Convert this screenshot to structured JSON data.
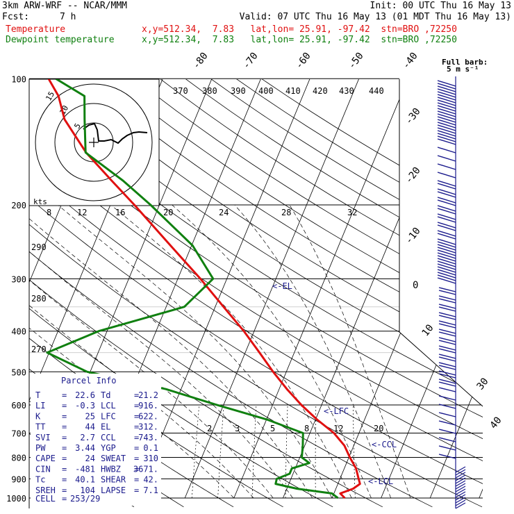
{
  "header": {
    "model": "3km ARW-WRF -- NCAR/MMM",
    "init": "Init: 00 UTC Thu 16 May 13",
    "fcst_label": "Fcst:",
    "fcst_value": "7 h",
    "valid": "Valid: 07 UTC Thu 16 May 13 (01 MDT Thu 16 May 13)",
    "temperature_label": "Temperature",
    "temperature_info": "x,y=512.34,  7.83   lat,lon= 25.91, -97.42  stn=BRO ,72250",
    "dewpoint_label": "Dewpoint temperature",
    "dewpoint_info": "x,y=512.34,  7.83   lat,lon= 25.91, -97.42  stn=BRO ,72250"
  },
  "barb_legend": {
    "line1": "Full barb:",
    "line2": "5 m s⁻¹"
  },
  "hodograph": {
    "units": "kts",
    "ring_labels": [
      "5",
      "10",
      "15"
    ]
  },
  "parcel": {
    "title": "Parcel Info",
    "rows": [
      [
        "T",
        "22.6",
        "Td",
        "21.2"
      ],
      [
        "LI",
        "-0.3",
        "LCL",
        "916."
      ],
      [
        "K",
        "25",
        "LFC",
        "622."
      ],
      [
        "TT",
        "44",
        "EL",
        "312."
      ],
      [
        "SVI",
        "2.7",
        "CCL",
        "743."
      ],
      [
        "PW",
        "3.44",
        "YGP",
        "0.1"
      ],
      [
        "CAPE",
        "24",
        "SWEAT",
        "310"
      ],
      [
        "CIN",
        "-481",
        "HWBZ",
        "3671."
      ],
      [
        "Tc",
        "40.1",
        "SHEAR",
        "42."
      ],
      [
        "SREH",
        "104",
        "LAPSE",
        "7.1"
      ]
    ],
    "cell_label": "CELL",
    "cell_value": "253/29"
  },
  "chart_data": {
    "type": "line",
    "title": "",
    "xlabel": "",
    "ylabel": "",
    "y_axis": {
      "scale": "log",
      "reversed": true,
      "ticks": [
        100,
        200,
        300,
        400,
        500,
        600,
        700,
        800,
        900,
        1000
      ]
    },
    "isotherm_labels": [
      "-80",
      "-70",
      "-60",
      "-50",
      "-40",
      "-30",
      "-20",
      "-10",
      "0",
      "10",
      "30",
      "40"
    ],
    "theta_labels": [
      "370",
      "380",
      "390",
      "400",
      "410",
      "420",
      "430",
      "440",
      "290",
      "280",
      "270"
    ],
    "mixing_ratio_labels": [
      "2",
      "3",
      "5",
      "8",
      "12",
      "20"
    ],
    "hodo_speed_labels": [
      "8",
      "12",
      "16",
      "20",
      "24",
      "28",
      "32"
    ],
    "series": [
      {
        "name": "Temperature",
        "color": "#e01010",
        "points": [
          [
            1000,
            22.6
          ],
          [
            975,
            21.3
          ],
          [
            950,
            23.5
          ],
          [
            925,
            24.5
          ],
          [
            900,
            23.8
          ],
          [
            850,
            22.4
          ],
          [
            800,
            20.2
          ],
          [
            750,
            18.1
          ],
          [
            700,
            14.9
          ],
          [
            650,
            10.3
          ],
          [
            600,
            5.9
          ],
          [
            550,
            1.6
          ],
          [
            500,
            -2.7
          ],
          [
            450,
            -7.1
          ],
          [
            400,
            -12.1
          ],
          [
            350,
            -18.3
          ],
          [
            300,
            -25.4
          ],
          [
            250,
            -34.3
          ],
          [
            200,
            -45.1
          ],
          [
            175,
            -51.8
          ],
          [
            150,
            -59.4
          ],
          [
            125,
            -66.6
          ],
          [
            110,
            -69.8
          ],
          [
            100,
            -73.3
          ]
        ]
      },
      {
        "name": "Dewpoint temperature",
        "color": "#108010",
        "points": [
          [
            1000,
            21.2
          ],
          [
            975,
            19.6
          ],
          [
            950,
            12.1
          ],
          [
            925,
            7.3
          ],
          [
            900,
            7.1
          ],
          [
            875,
            9.3
          ],
          [
            850,
            9.3
          ],
          [
            825,
            12.4
          ],
          [
            800,
            10.4
          ],
          [
            750,
            9.6
          ],
          [
            700,
            8.6
          ],
          [
            650,
            0.1
          ],
          [
            600,
            -11.3
          ],
          [
            550,
            -23.1
          ],
          [
            500,
            -40.6
          ],
          [
            450,
            -50.4
          ],
          [
            400,
            -41.7
          ],
          [
            350,
            -26.3
          ],
          [
            300,
            -22.8
          ],
          [
            250,
            -29.8
          ],
          [
            200,
            -41.8
          ],
          [
            175,
            -49.5
          ],
          [
            150,
            -59.5
          ],
          [
            125,
            -62.5
          ],
          [
            110,
            -64.5
          ],
          [
            100,
            -71.8
          ]
        ]
      }
    ],
    "annotations": [
      "<-EL",
      "<-LFC",
      "<-CCL",
      "<-LCL"
    ],
    "legend": "top-left",
    "grid": true
  }
}
